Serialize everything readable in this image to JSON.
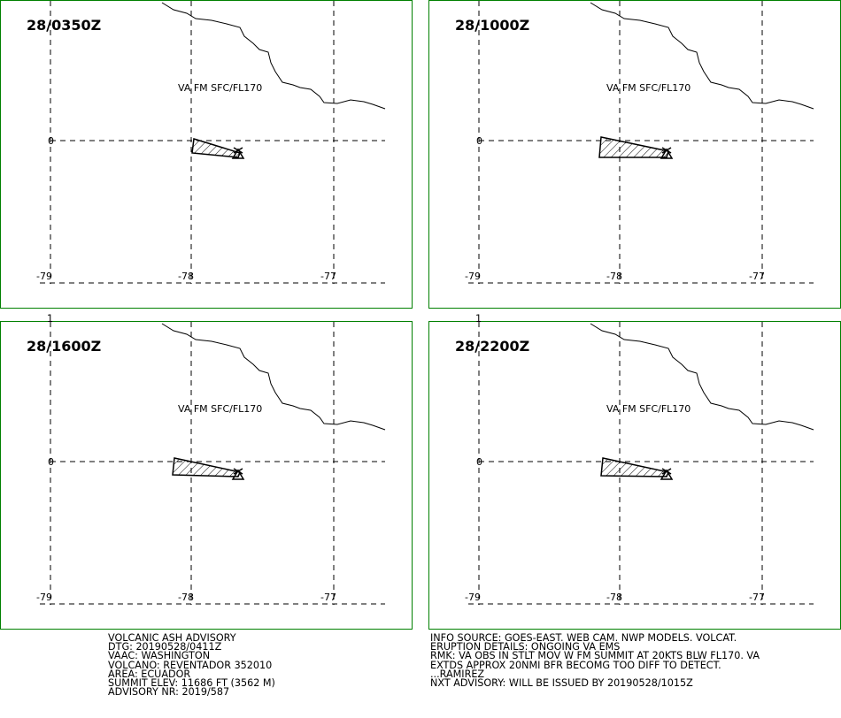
{
  "panels": [
    {
      "time": "28/0350Z",
      "level_label": "VA FM SFC/FL170"
    },
    {
      "time": "28/1000Z",
      "level_label": "VA FM SFC/FL170"
    },
    {
      "time": "28/1600Z",
      "level_label": "VA FM SFC/FL170"
    },
    {
      "time": "28/2200Z",
      "level_label": "VA FM SFC/FL170"
    }
  ],
  "axis_labels": {
    "lat_0": "0",
    "lat_1": "1",
    "lon_79": "-79",
    "lon_78": "-78",
    "lon_77": "-77"
  },
  "colors": {
    "frame": "#008000",
    "lines": "#000000",
    "background": "#ffffff"
  },
  "icons": {
    "volcano_marker": "triangle-volcano-icon"
  },
  "advisory_left": [
    "VOLCANIC ASH ADVISORY",
    "DTG: 20190528/0411Z",
    "VAAC: WASHINGTON",
    "VOLCANO: REVENTADOR 352010",
    "AREA: ECUADOR",
    "SUMMIT ELEV: 11686 FT (3562 M)",
    "ADVISORY NR: 2019/587"
  ],
  "advisory_right": [
    "INFO SOURCE: GOES-EAST. WEB CAM. NWP MODELS. VOLCAT.",
    "ERUPTION DETAILS: ONGOING VA EMS",
    "RMK: VA OBS IN STLT MOV W FM SUMMIT AT 20KTS BLW FL170. VA",
    "EXTDS APPROX 20NMI BFR BECOMG TOO DIFF TO DETECT.",
    "...RAMIREZ",
    "NXT ADVISORY: WILL BE ISSUED BY 20190528/1015Z"
  ]
}
